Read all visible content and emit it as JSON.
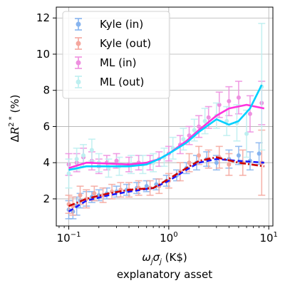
{
  "chart_data": {
    "type": "scatter",
    "title": "",
    "xlabel_sym": "ω",
    "xlabel_sub1": "j",
    "xlabel_sym2": "σ",
    "xlabel_sub2": "j",
    "xlabel_unit": " (K$)",
    "xlabel_line2": "explanatory asset",
    "ylabel_main": "Δ",
    "ylabel_script": "R",
    "ylabel_sup": "2 *",
    "ylabel_unit": " (%)",
    "xscale": "log",
    "xlim": [
      0.075,
      11
    ],
    "ylim": [
      0.5,
      12.6
    ],
    "x_ticks": [
      {
        "value": 0.1,
        "base": "10",
        "exp": "−1"
      },
      {
        "value": 1,
        "base": "10",
        "exp": "0"
      },
      {
        "value": 10,
        "base": "10",
        "exp": "1"
      }
    ],
    "y_ticks": [
      2,
      4,
      6,
      8,
      10,
      12
    ],
    "grid": true,
    "legend_position": "top-left",
    "series": [
      {
        "name": "Kyle (in)",
        "color": "#87b4ef",
        "line_color": "#1a1aff",
        "line_style": "dashed",
        "points": [
          [
            0.1,
            1.4,
            0.5
          ],
          [
            0.11,
            1.3,
            0.4
          ],
          [
            0.12,
            1.6,
            0.5
          ],
          [
            0.13,
            1.9,
            0.4
          ],
          [
            0.15,
            2.0,
            0.4
          ],
          [
            0.17,
            2.1,
            0.3
          ],
          [
            0.2,
            2.2,
            0.3
          ],
          [
            0.24,
            2.3,
            0.3
          ],
          [
            0.3,
            2.4,
            0.3
          ],
          [
            0.38,
            2.5,
            0.3
          ],
          [
            0.48,
            2.6,
            0.3
          ],
          [
            0.6,
            2.7,
            0.3
          ],
          [
            0.75,
            2.8,
            0.3
          ],
          [
            0.95,
            3.0,
            0.3
          ],
          [
            1.2,
            3.3,
            0.3
          ],
          [
            1.5,
            3.7,
            0.3
          ],
          [
            1.9,
            4.0,
            0.4
          ],
          [
            2.4,
            4.2,
            0.4
          ],
          [
            3.0,
            4.0,
            0.4
          ],
          [
            4.0,
            4.2,
            0.5
          ],
          [
            5.0,
            4.4,
            0.5
          ],
          [
            6.5,
            4.1,
            0.5
          ],
          [
            8.0,
            4.5,
            0.6
          ]
        ],
        "fit": [
          [
            0.1,
            1.3
          ],
          [
            0.15,
            1.9
          ],
          [
            0.25,
            2.2
          ],
          [
            0.4,
            2.4
          ],
          [
            0.7,
            2.6
          ],
          [
            1.0,
            3.0
          ],
          [
            1.5,
            3.6
          ],
          [
            2.0,
            4.0
          ],
          [
            3.0,
            4.2
          ],
          [
            5.0,
            4.1
          ],
          [
            9.0,
            4.0
          ]
        ]
      },
      {
        "name": "Kyle (out)",
        "color": "#f5a79e",
        "line_color": "#cc0000",
        "line_style": "dashdot",
        "points": [
          [
            0.1,
            1.7,
            0.5
          ],
          [
            0.11,
            1.6,
            0.5
          ],
          [
            0.13,
            2.2,
            0.5
          ],
          [
            0.15,
            2.0,
            0.5
          ],
          [
            0.18,
            2.3,
            0.4
          ],
          [
            0.22,
            2.2,
            0.4
          ],
          [
            0.27,
            2.4,
            0.4
          ],
          [
            0.33,
            2.5,
            0.4
          ],
          [
            0.4,
            2.5,
            0.4
          ],
          [
            0.5,
            2.6,
            0.4
          ],
          [
            0.65,
            2.6,
            0.4
          ],
          [
            0.8,
            2.7,
            0.4
          ],
          [
            1.0,
            3.0,
            0.4
          ],
          [
            1.3,
            3.5,
            0.5
          ],
          [
            1.6,
            4.0,
            0.5
          ],
          [
            2.0,
            4.4,
            0.5
          ],
          [
            2.5,
            4.2,
            0.5
          ],
          [
            3.2,
            4.3,
            0.6
          ],
          [
            4.0,
            3.9,
            0.6
          ],
          [
            5.5,
            4.0,
            0.7
          ],
          [
            8.5,
            4.0,
            1.8
          ]
        ],
        "fit": [
          [
            0.1,
            1.6
          ],
          [
            0.15,
            2.0
          ],
          [
            0.25,
            2.3
          ],
          [
            0.4,
            2.5
          ],
          [
            0.7,
            2.6
          ],
          [
            1.0,
            3.1
          ],
          [
            1.5,
            3.7
          ],
          [
            2.0,
            4.1
          ],
          [
            3.0,
            4.3
          ],
          [
            5.0,
            4.0
          ],
          [
            9.0,
            3.8
          ]
        ]
      },
      {
        "name": "ML (in)",
        "color": "#ee8fe0",
        "line_color": "#ff33dd",
        "line_style": "solid",
        "points": [
          [
            0.1,
            3.9,
            0.6
          ],
          [
            0.12,
            4.0,
            0.5
          ],
          [
            0.14,
            4.3,
            0.5
          ],
          [
            0.17,
            4.1,
            0.5
          ],
          [
            0.2,
            3.8,
            0.4
          ],
          [
            0.24,
            4.0,
            0.4
          ],
          [
            0.3,
            4.1,
            0.4
          ],
          [
            0.4,
            3.9,
            0.4
          ],
          [
            0.5,
            4.0,
            0.4
          ],
          [
            0.65,
            4.0,
            0.4
          ],
          [
            0.8,
            4.2,
            0.4
          ],
          [
            1.0,
            4.5,
            0.4
          ],
          [
            1.3,
            5.0,
            0.5
          ],
          [
            1.6,
            5.5,
            0.5
          ],
          [
            2.0,
            6.0,
            0.6
          ],
          [
            2.5,
            6.5,
            0.6
          ],
          [
            3.2,
            7.2,
            0.7
          ],
          [
            4.0,
            7.4,
            0.8
          ],
          [
            5.0,
            7.6,
            0.9
          ],
          [
            6.5,
            6.7,
            1.0
          ],
          [
            8.5,
            7.3,
            1.2
          ]
        ],
        "fit": [
          [
            0.1,
            3.7
          ],
          [
            0.15,
            4.0
          ],
          [
            0.25,
            3.95
          ],
          [
            0.4,
            3.9
          ],
          [
            0.6,
            4.0
          ],
          [
            0.8,
            4.2
          ],
          [
            1.0,
            4.5
          ],
          [
            1.5,
            5.2
          ],
          [
            2.0,
            5.8
          ],
          [
            3.0,
            6.6
          ],
          [
            4.0,
            7.0
          ],
          [
            6.0,
            7.2
          ],
          [
            9.0,
            7.0
          ]
        ]
      },
      {
        "name": "ML (out)",
        "color": "#bdeff0",
        "line_color": "#00d0ff",
        "line_style": "solid",
        "points": [
          [
            0.1,
            3.4,
            0.8
          ],
          [
            0.12,
            4.2,
            0.6
          ],
          [
            0.14,
            4.4,
            0.6
          ],
          [
            0.17,
            4.7,
            0.6
          ],
          [
            0.2,
            4.0,
            0.5
          ],
          [
            0.25,
            3.7,
            0.5
          ],
          [
            0.32,
            3.8,
            0.5
          ],
          [
            0.42,
            3.9,
            0.5
          ],
          [
            0.55,
            3.9,
            0.5
          ],
          [
            0.7,
            4.0,
            0.5
          ],
          [
            0.9,
            4.3,
            0.5
          ],
          [
            1.1,
            4.8,
            0.6
          ],
          [
            1.4,
            5.3,
            0.6
          ],
          [
            1.8,
            5.8,
            0.6
          ],
          [
            2.3,
            6.3,
            0.7
          ],
          [
            3.0,
            6.6,
            0.7
          ],
          [
            3.8,
            6.3,
            0.8
          ],
          [
            4.8,
            6.2,
            1.0
          ],
          [
            6.0,
            5.6,
            1.3
          ],
          [
            8.5,
            8.2,
            3.5
          ]
        ],
        "fit": [
          [
            0.1,
            3.6
          ],
          [
            0.15,
            3.8
          ],
          [
            0.25,
            3.8
          ],
          [
            0.4,
            3.8
          ],
          [
            0.6,
            3.9
          ],
          [
            0.8,
            4.2
          ],
          [
            1.0,
            4.5
          ],
          [
            1.5,
            5.1
          ],
          [
            2.0,
            5.7
          ],
          [
            3.0,
            6.4
          ],
          [
            4.0,
            6.1
          ],
          [
            5.0,
            6.3
          ],
          [
            6.5,
            7.0
          ],
          [
            8.5,
            8.3
          ]
        ]
      }
    ]
  }
}
